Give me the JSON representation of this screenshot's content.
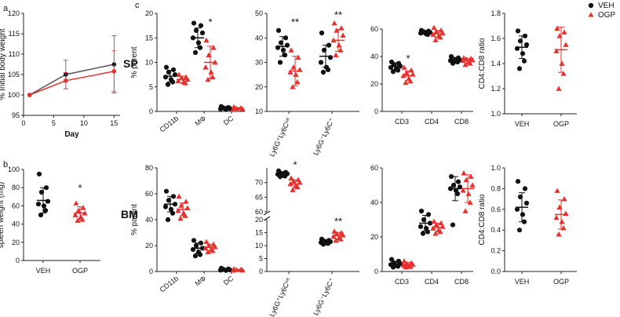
{
  "colors": {
    "veh": "#111111",
    "ogp": "#e8312f",
    "axis": "#222222"
  },
  "legend": {
    "veh_label": "VEH",
    "ogp_label": "OGP"
  },
  "panel_labels": {
    "a": "a",
    "b": "b",
    "c": "c"
  },
  "row_labels": {
    "sp": "SP",
    "bm": "BM"
  },
  "chart_data": [
    {
      "id": "a",
      "type": "line",
      "ylabel": "% Initial body weight",
      "xlabel": "Day",
      "ylim": [
        95,
        120
      ],
      "yticks": [
        95,
        100,
        105,
        110,
        115,
        120
      ],
      "xlim": [
        0,
        16
      ],
      "xticks": [
        0,
        5,
        10,
        15
      ],
      "series": [
        {
          "group": "veh",
          "x": [
            1,
            7,
            15
          ],
          "y": [
            100,
            105,
            107.5
          ],
          "err": [
            0,
            3.5,
            7
          ]
        },
        {
          "group": "ogp",
          "x": [
            1,
            7,
            15
          ],
          "y": [
            100,
            103.5,
            105.8
          ],
          "err": [
            0,
            2,
            5
          ]
        }
      ]
    },
    {
      "id": "b",
      "type": "scatter",
      "ylabel": "spleen weight (mg)",
      "ylim": [
        0,
        100
      ],
      "yticks": [
        0,
        20,
        40,
        60,
        80,
        100
      ],
      "categories": [
        "VEH",
        "OGP"
      ],
      "groups": [
        {
          "group": "veh",
          "cat": 0,
          "points": [
            95,
            80,
            75,
            65,
            62,
            60,
            55,
            50
          ],
          "mean": 66,
          "sd": 14
        },
        {
          "group": "ogp",
          "cat": 1,
          "points": [
            63,
            58,
            55,
            52,
            50,
            48,
            45,
            44
          ],
          "mean": 52,
          "sd": 7
        }
      ],
      "annotations": [
        {
          "cat": 1,
          "y": 76,
          "text": "*"
        }
      ]
    },
    {
      "id": "sp1",
      "type": "scatter",
      "ylabel": "% parent",
      "ylim": [
        0,
        20
      ],
      "yticks": [
        0,
        5,
        10,
        15,
        20
      ],
      "categories": [
        "CD11b",
        "MΦ",
        "DC"
      ],
      "groups": [
        {
          "group": "veh",
          "cat": 0,
          "points": [
            9,
            8.5,
            8,
            7.5,
            7,
            6.5,
            6,
            5.5
          ],
          "mean": 7.2,
          "sd": 1.2
        },
        {
          "group": "ogp",
          "cat": 0,
          "points": [
            7.5,
            7,
            6.8,
            6.5,
            6.2,
            6,
            5.8
          ],
          "mean": 6.5,
          "sd": 0.7
        },
        {
          "group": "veh",
          "cat": 1,
          "points": [
            18,
            17.5,
            16.5,
            16,
            15,
            14,
            13,
            12
          ],
          "mean": 15,
          "sd": 2
        },
        {
          "group": "ogp",
          "cat": 1,
          "points": [
            14.5,
            13,
            11.5,
            10,
            9,
            8,
            7,
            6.5
          ],
          "mean": 10,
          "sd": 3.3
        },
        {
          "group": "veh",
          "cat": 2,
          "points": [
            1,
            0.8,
            0.7,
            0.6,
            0.5,
            0.4
          ],
          "mean": 0.7,
          "sd": 0.3
        },
        {
          "group": "ogp",
          "cat": 2,
          "points": [
            0.9,
            0.7,
            0.6,
            0.5,
            0.4
          ],
          "mean": 0.6,
          "sd": 0.2
        }
      ],
      "annotations": [
        {
          "cat": 1,
          "y": 17.5,
          "text": "*"
        }
      ]
    },
    {
      "id": "sp2",
      "type": "scatter",
      "ylim": [
        10,
        50
      ],
      "yticks": [
        10,
        20,
        30,
        40,
        50
      ],
      "categories": [
        "Ly6G⁺Ly6Cᶦⁿᵗ",
        "Ly6G⁻Ly6C⁺"
      ],
      "groups": [
        {
          "group": "veh",
          "cat": 0,
          "points": [
            43,
            40,
            38,
            37,
            36,
            35,
            33,
            30
          ],
          "mean": 36.5,
          "sd": 4
        },
        {
          "group": "ogp",
          "cat": 0,
          "points": [
            35,
            32,
            28,
            27,
            26,
            25,
            22,
            20
          ],
          "mean": 26.5,
          "sd": 6
        },
        {
          "group": "veh",
          "cat": 1,
          "points": [
            42,
            37,
            35,
            32,
            30,
            28,
            27,
            26
          ],
          "mean": 32.5,
          "sd": 4.5
        },
        {
          "group": "ogp",
          "cat": 1,
          "points": [
            46,
            44,
            43,
            41,
            39,
            37,
            35,
            33
          ],
          "mean": 39,
          "sd": 4.5
        }
      ],
      "annotations": [
        {
          "cat": 0,
          "y": 45,
          "text": "**"
        },
        {
          "cat": 1,
          "y": 48,
          "text": "**"
        }
      ]
    },
    {
      "id": "sp3",
      "type": "scatter",
      "ylim": [
        0,
        60
      ],
      "yticks": [
        0,
        20,
        40,
        60
      ],
      "categories": [
        "CD3",
        "CD4",
        "CD8"
      ],
      "groups": [
        {
          "group": "veh",
          "cat": 0,
          "points": [
            36,
            35,
            34,
            33,
            32,
            31,
            30,
            29
          ],
          "mean": 33,
          "sd": 2.5
        },
        {
          "group": "ogp",
          "cat": 0,
          "points": [
            32,
            30,
            28,
            27,
            26,
            24,
            22,
            21
          ],
          "mean": 26,
          "sd": 3.5
        },
        {
          "group": "veh",
          "cat": 1,
          "points": [
            59,
            58.5,
            58,
            57.5,
            57,
            56.5,
            56
          ],
          "mean": 57.5,
          "sd": 1.3
        },
        {
          "group": "ogp",
          "cat": 1,
          "points": [
            61,
            59,
            58,
            57,
            56,
            55,
            54,
            52
          ],
          "mean": 56.5,
          "sd": 2.5
        },
        {
          "group": "veh",
          "cat": 2,
          "points": [
            40,
            39,
            38,
            37.5,
            37,
            36.5,
            36,
            35
          ],
          "mean": 37.5,
          "sd": 1.8
        },
        {
          "group": "ogp",
          "cat": 2,
          "points": [
            39,
            38.5,
            38,
            37.5,
            37,
            36,
            35,
            34
          ],
          "mean": 37,
          "sd": 1.6
        }
      ],
      "annotations": [
        {
          "cat": 0,
          "y": 36,
          "text": "*"
        }
      ]
    },
    {
      "id": "sp4",
      "type": "scatter",
      "ylabel": "CD4:CD8 ratio",
      "ylim": [
        1.0,
        1.8
      ],
      "yticks": [
        1.0,
        1.2,
        1.4,
        1.6,
        1.8
      ],
      "categories": [
        "VEH",
        "OGP"
      ],
      "groups": [
        {
          "group": "veh",
          "cat": 0,
          "points": [
            1.66,
            1.62,
            1.58,
            1.55,
            1.52,
            1.48,
            1.42,
            1.36
          ],
          "mean": 1.53,
          "sd": 0.09
        },
        {
          "group": "ogp",
          "cat": 1,
          "points": [
            1.68,
            1.65,
            1.62,
            1.55,
            1.5,
            1.4,
            1.32,
            1.2
          ],
          "mean": 1.51,
          "sd": 0.18
        }
      ]
    },
    {
      "id": "bm1",
      "type": "scatter",
      "ylabel": "% parent",
      "ylim": [
        0,
        80
      ],
      "yticks": [
        0,
        20,
        40,
        60,
        80
      ],
      "categories": [
        "CD11b",
        "MΦ",
        "DC"
      ],
      "groups": [
        {
          "group": "veh",
          "cat": 0,
          "points": [
            62,
            58,
            55,
            52,
            50,
            48,
            45,
            40
          ],
          "mean": 52,
          "sd": 6
        },
        {
          "group": "ogp",
          "cat": 0,
          "points": [
            58,
            54,
            51,
            49,
            47,
            45,
            43,
            41
          ],
          "mean": 48,
          "sd": 5
        },
        {
          "group": "veh",
          "cat": 1,
          "points": [
            24,
            22,
            20,
            18,
            17,
            15,
            13,
            12
          ],
          "mean": 18,
          "sd": 4
        },
        {
          "group": "ogp",
          "cat": 1,
          "points": [
            23,
            21,
            20,
            19,
            18,
            17,
            16,
            15
          ],
          "mean": 18.5,
          "sd": 2.5
        },
        {
          "group": "veh",
          "cat": 2,
          "points": [
            2.5,
            2,
            1.5,
            1.2,
            1,
            0.8
          ],
          "mean": 1.5,
          "sd": 0.6
        },
        {
          "group": "ogp",
          "cat": 2,
          "points": [
            2,
            1.6,
            1.3,
            1,
            0.8
          ],
          "mean": 1.3,
          "sd": 0.4
        }
      ]
    },
    {
      "id": "bm2",
      "type": "scatter",
      "broken_axis": true,
      "ylim_bottom": [
        0,
        20
      ],
      "yticks_bottom": [
        0,
        5,
        10,
        15,
        20
      ],
      "ylim_top": [
        60,
        75
      ],
      "yticks_top": [
        60,
        65,
        70
      ],
      "categories": [
        "Ly6G⁺Ly6Cᶦⁿᵗ",
        "Ly6G⁻Ly6C⁺"
      ],
      "groups": [
        {
          "group": "veh",
          "cat": 0,
          "points": [
            74,
            73.5,
            73.2,
            73,
            72.8,
            72.5,
            72.2,
            72
          ],
          "mean": 73,
          "sd": 0.7
        },
        {
          "group": "ogp",
          "cat": 0,
          "points": [
            71.5,
            71,
            70.5,
            70,
            69.5,
            69,
            68.5,
            67.5
          ],
          "mean": 69.5,
          "sd": 1.4
        },
        {
          "group": "veh",
          "cat": 1,
          "points": [
            12.5,
            12,
            11.8,
            11.5,
            11.2,
            11,
            10.8,
            10.5
          ],
          "mean": 11.5,
          "sd": 0.7
        },
        {
          "group": "ogp",
          "cat": 1,
          "points": [
            15.5,
            15,
            14.5,
            14,
            13.5,
            13,
            12.5,
            12
          ],
          "mean": 13.8,
          "sd": 1.3
        }
      ],
      "annotations": [
        {
          "cat": 0,
          "y": 74.8,
          "text": "*",
          "part": "top"
        },
        {
          "cat": 1,
          "y": 18,
          "text": "**",
          "part": "bottom"
        }
      ]
    },
    {
      "id": "bm3",
      "type": "scatter",
      "ylim": [
        0,
        60
      ],
      "yticks": [
        0,
        20,
        40,
        60
      ],
      "categories": [
        "CD3",
        "CD4",
        "CD8"
      ],
      "groups": [
        {
          "group": "veh",
          "cat": 0,
          "points": [
            7,
            6,
            5,
            4.5,
            4,
            3.5,
            3,
            2.5
          ],
          "mean": 4.5,
          "sd": 1.5
        },
        {
          "group": "ogp",
          "cat": 0,
          "points": [
            6,
            5,
            4.5,
            4,
            3.5,
            3,
            2.8,
            2.5
          ],
          "mean": 4,
          "sd": 1.2
        },
        {
          "group": "veh",
          "cat": 1,
          "points": [
            35,
            33,
            30,
            28,
            26,
            25,
            23,
            22
          ],
          "mean": 28,
          "sd": 4.5
        },
        {
          "group": "ogp",
          "cat": 1,
          "points": [
            29,
            28,
            27,
            26,
            25,
            24,
            23,
            22
          ],
          "mean": 25.5,
          "sd": 2.5
        },
        {
          "group": "veh",
          "cat": 2,
          "points": [
            55,
            52,
            50,
            49,
            48,
            47,
            45,
            27
          ],
          "mean": 48,
          "sd": 7
        },
        {
          "group": "ogp",
          "cat": 2,
          "points": [
            57,
            55,
            53,
            50,
            47,
            45,
            40,
            35
          ],
          "mean": 48,
          "sd": 8
        }
      ]
    },
    {
      "id": "bm4",
      "type": "scatter",
      "ylabel": "CD4:CD8 ratio",
      "ylim": [
        0.0,
        1.0
      ],
      "yticks": [
        0.0,
        0.2,
        0.4,
        0.6,
        0.8,
        1.0
      ],
      "categories": [
        "VEH",
        "OGP"
      ],
      "groups": [
        {
          "group": "veh",
          "cat": 0,
          "points": [
            0.87,
            0.8,
            0.72,
            0.66,
            0.6,
            0.55,
            0.48,
            0.4
          ],
          "mean": 0.62,
          "sd": 0.14
        },
        {
          "group": "ogp",
          "cat": 1,
          "points": [
            0.78,
            0.7,
            0.62,
            0.56,
            0.52,
            0.48,
            0.42,
            0.36
          ],
          "mean": 0.55,
          "sd": 0.14
        }
      ]
    }
  ]
}
